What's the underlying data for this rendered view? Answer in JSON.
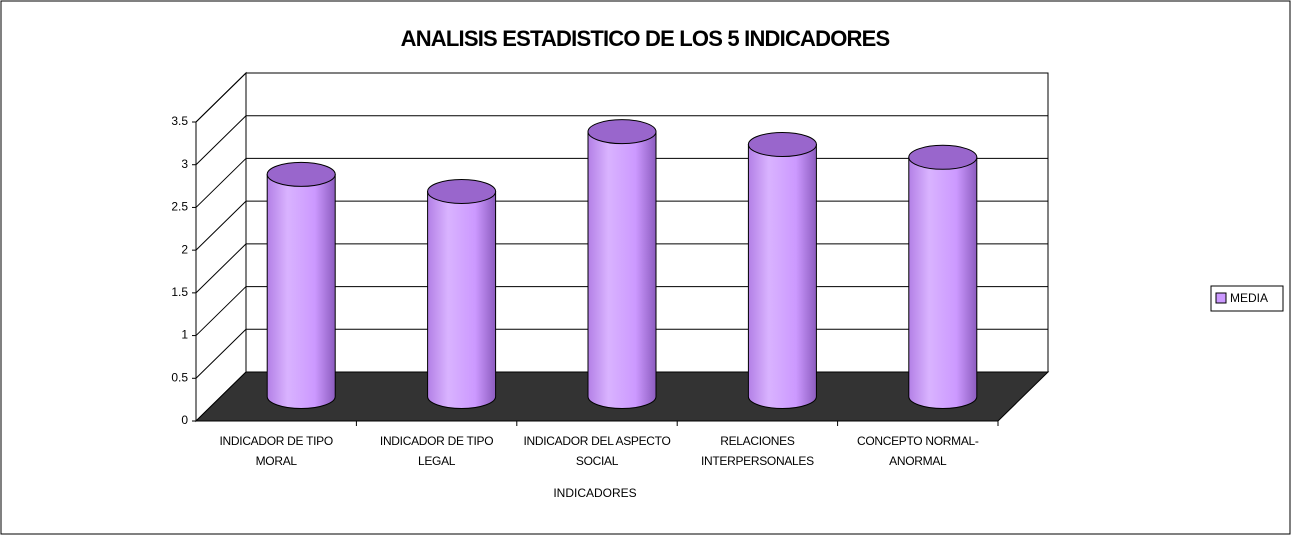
{
  "chart_data": {
    "type": "bar3d",
    "title": "ANALISIS ESTADISTICO DE LOS 5 INDICADORES",
    "xlabel": "INDICADORES",
    "categories": [
      "INDICADOR DE TIPO MORAL",
      "INDICADOR DE TIPO LEGAL",
      "INDICADOR DEL ASPECTO SOCIAL",
      "RELACIONES INTERPERSONALES",
      "CONCEPTO NORMAL-ANORMAL"
    ],
    "series": [
      {
        "name": "MEDIA",
        "color": "#cc99ff",
        "values": [
          2.6,
          2.4,
          3.1,
          2.95,
          2.8
        ]
      }
    ],
    "ylim": [
      0,
      3.5
    ],
    "yticks": [
      0,
      {
        "value": 0.5,
        "label": "0.5"
      },
      1,
      {
        "value": 1.5,
        "label": "1.5"
      },
      2,
      {
        "value": 2.5,
        "label": "2.5"
      },
      3,
      {
        "value": 3.5,
        "label": "3.5"
      }
    ],
    "grid": true,
    "legend": "right"
  }
}
